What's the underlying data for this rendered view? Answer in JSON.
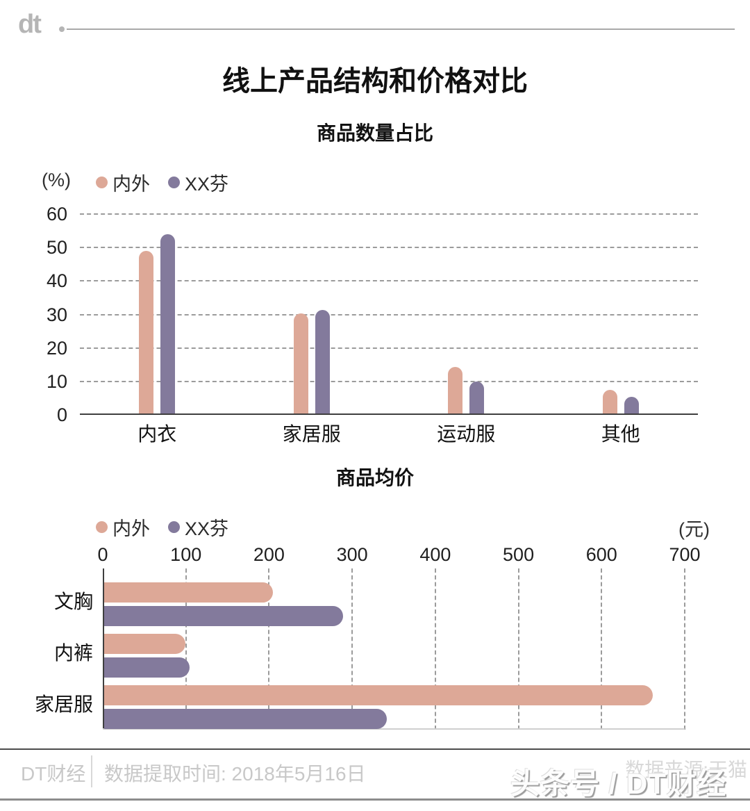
{
  "header": {
    "logo_text": "dt"
  },
  "title": "线上产品结构和价格对比",
  "colors": {
    "neiwai": "#dda897",
    "xxfen": "#837a9c",
    "grid": "#9b9b9b",
    "axis": "#3f3f3f"
  },
  "chart_data": [
    {
      "type": "bar",
      "orientation": "vertical",
      "title": "商品数量占比",
      "unit": "(%)",
      "legend_position": "top-left",
      "grid": "horizontal-dashed",
      "categories": [
        "内衣",
        "家居服",
        "运动服",
        "其他"
      ],
      "series": [
        {
          "name": "内外",
          "color": "#dda897",
          "values": [
            48.5,
            30,
            14,
            7
          ]
        },
        {
          "name": "XX芬",
          "color": "#837a9c",
          "values": [
            53.5,
            31,
            9.5,
            5
          ]
        }
      ],
      "ylim": [
        0,
        60
      ],
      "yticks": [
        0,
        10,
        20,
        30,
        40,
        50,
        60
      ]
    },
    {
      "type": "bar",
      "orientation": "horizontal",
      "title": "商品均价",
      "unit": "(元)",
      "legend_position": "top-left",
      "grid": "vertical-dashed",
      "categories": [
        "文胸",
        "内裤",
        "家居服"
      ],
      "series": [
        {
          "name": "内外",
          "color": "#dda897",
          "values": [
            203,
            98,
            660
          ]
        },
        {
          "name": "XX芬",
          "color": "#837a9c",
          "values": [
            287,
            103,
            340
          ]
        }
      ],
      "xlim": [
        0,
        700
      ],
      "xticks": [
        0,
        100,
        200,
        300,
        400,
        500,
        600,
        700
      ]
    }
  ],
  "footer": {
    "brand": "DT财经",
    "note": "数据提取时间: 2018年5月16日",
    "source": "数据来源:天猫",
    "watermark": "头条号 / DT财经"
  }
}
